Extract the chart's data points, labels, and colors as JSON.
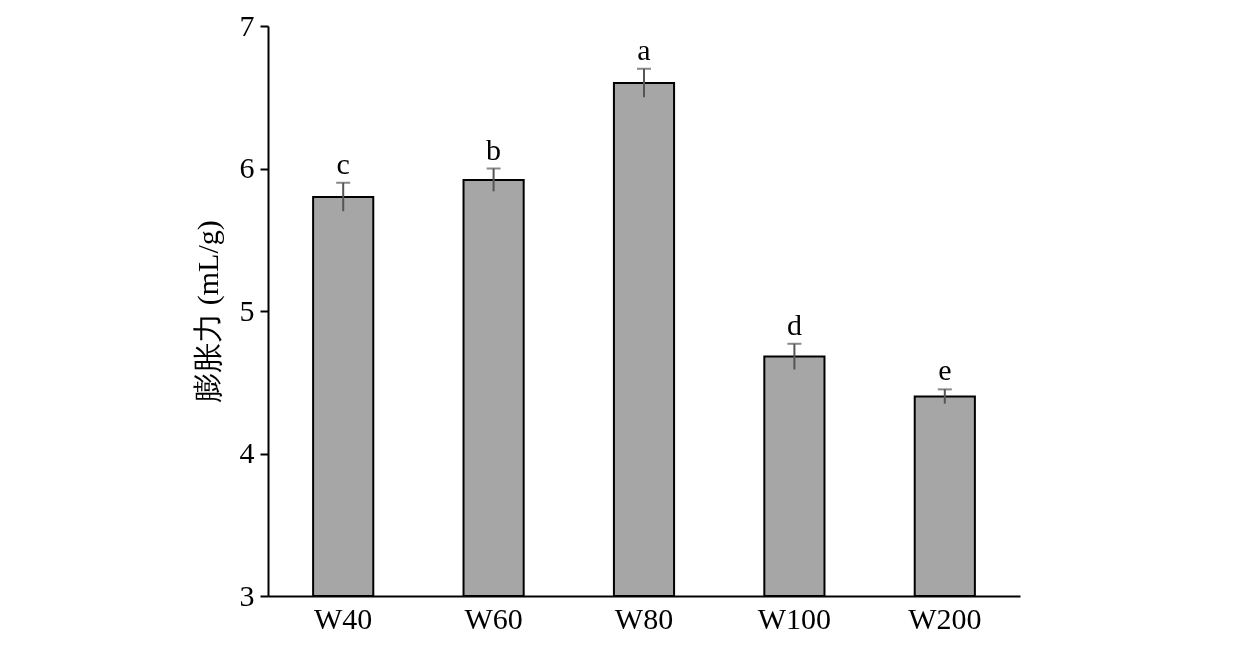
{
  "chart_data": {
    "type": "bar",
    "ylabel": "膨胀力 (mL/g)",
    "categories": [
      "W40",
      "W60",
      "W80",
      "W100",
      "W200"
    ],
    "values": [
      5.8,
      5.92,
      6.6,
      4.68,
      4.4
    ],
    "errors": [
      0.1,
      0.08,
      0.1,
      0.09,
      0.05
    ],
    "color": "#a6a6a6",
    "ylim": [
      3,
      7
    ],
    "yticks": [
      3,
      4,
      5,
      6,
      7
    ],
    "grid": false,
    "annotations": [
      {
        "text": "c",
        "x": "W40",
        "y": 5.9
      },
      {
        "text": "b",
        "x": "W60",
        "y": 6.0
      },
      {
        "text": "a",
        "x": "W80",
        "y": 6.7
      },
      {
        "text": "d",
        "x": "W100",
        "y": 4.77
      },
      {
        "text": "e",
        "x": "W200",
        "y": 4.45
      }
    ]
  }
}
